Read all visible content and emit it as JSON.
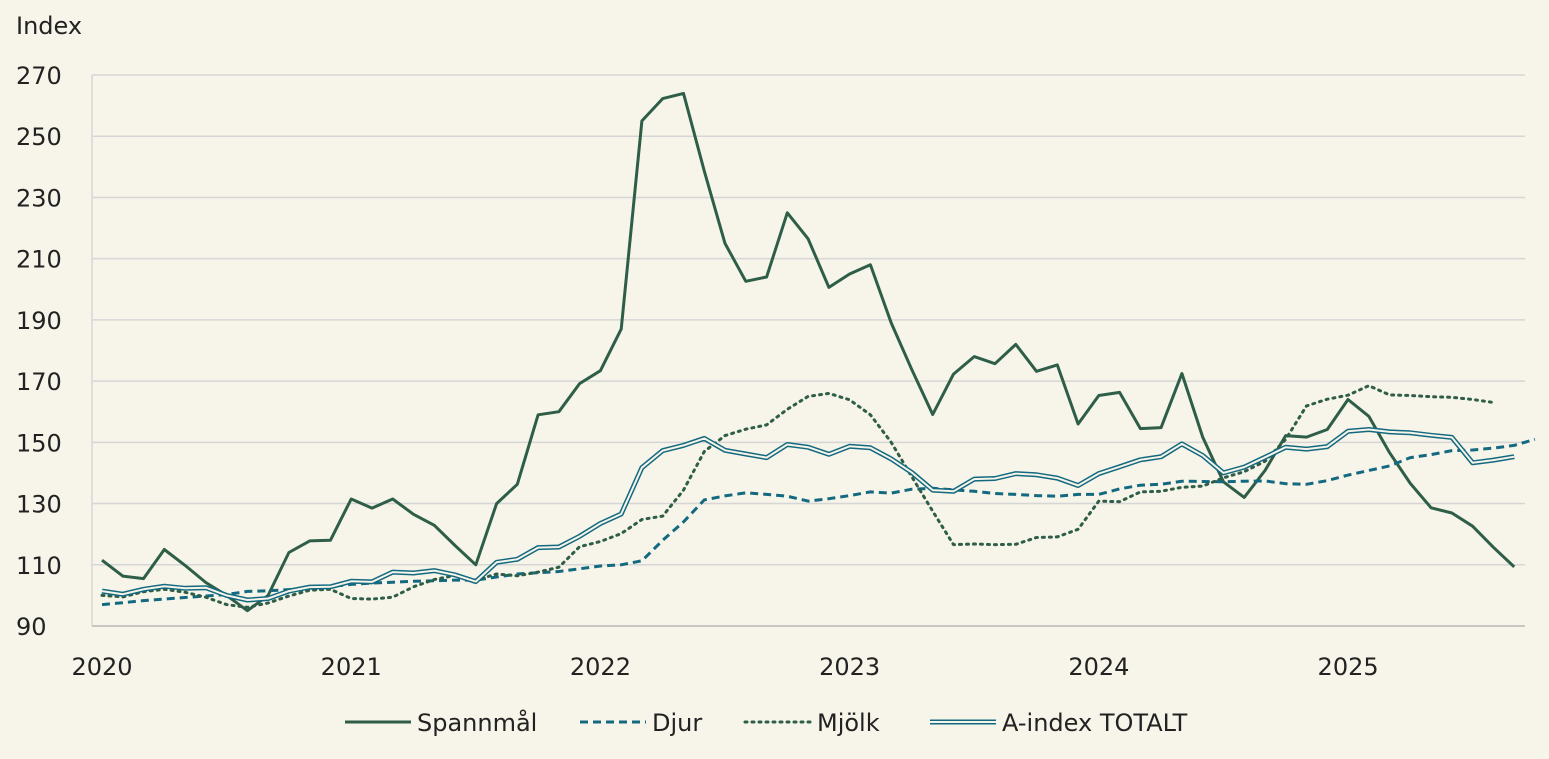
{
  "chart_data": {
    "type": "line",
    "ylabel": "Index",
    "ylim": [
      90,
      270
    ],
    "yticks": [
      90,
      110,
      130,
      150,
      170,
      190,
      210,
      230,
      250,
      270
    ],
    "xlim": [
      2020.0,
      2025.75
    ],
    "xticks": [
      {
        "value": 2020,
        "label": "2020"
      },
      {
        "value": 2021,
        "label": "2021"
      },
      {
        "value": 2022,
        "label": "2022"
      },
      {
        "value": 2023,
        "label": "2023"
      },
      {
        "value": 2024,
        "label": "2024"
      },
      {
        "value": 2025,
        "label": "2025"
      }
    ],
    "grid": "horizontal",
    "legend_position": "bottom",
    "series": [
      {
        "name": "Spannmål",
        "style": "solid",
        "color": "#2e5e48",
        "start": 2020.0,
        "step": 0.08333,
        "values": [
          111.5,
          106.3,
          105.5,
          115.0,
          109.8,
          104.2,
          100.0,
          95.0,
          100.0,
          114.0,
          117.8,
          118.0,
          131.5,
          128.5,
          131.5,
          126.5,
          122.9,
          116.3,
          110.0,
          130.0,
          136.3,
          159.0,
          160.0,
          169.2,
          173.4,
          187.0,
          255.0,
          262.3,
          264.0,
          238.6,
          215.0,
          202.6,
          204.0,
          225.0,
          216.5,
          200.6,
          205.0,
          208.0,
          189.0,
          173.7,
          159.1,
          172.3,
          178.0,
          175.7,
          182.0,
          173.2,
          175.3,
          156.0,
          165.3,
          166.3,
          154.5,
          154.8,
          172.5,
          151.7,
          137.1,
          132.0,
          140.8,
          152.2,
          151.7,
          154.2,
          164.0,
          158.5,
          146.6,
          136.6,
          128.6,
          126.9,
          122.6,
          115.7,
          109.3
        ]
      },
      {
        "name": "Djur",
        "style": "dashed",
        "color": "#136a80",
        "start": 2020.0,
        "step": 0.08333,
        "values": [
          97.0,
          97.6,
          98.3,
          98.8,
          99.3,
          99.8,
          100.3,
          101.3,
          101.5,
          101.9,
          102.3,
          102.9,
          103.6,
          104.0,
          104.3,
          104.6,
          104.8,
          105.0,
          105.0,
          106.0,
          107.0,
          107.4,
          107.8,
          108.7,
          109.6,
          110.0,
          111.3,
          118.0,
          124.0,
          131.2,
          132.5,
          133.5,
          133.0,
          132.4,
          130.8,
          131.6,
          132.6,
          133.8,
          133.4,
          134.7,
          135.0,
          134.5,
          134.0,
          133.3,
          133.0,
          132.6,
          132.4,
          133.0,
          133.0,
          134.8,
          136.0,
          136.3,
          137.3,
          137.2,
          137.1,
          137.3,
          137.4,
          136.5,
          136.3,
          137.5,
          139.3,
          140.8,
          142.3,
          145.0,
          146.0,
          147.3,
          147.5,
          148.1,
          149.0,
          151.0
        ]
      },
      {
        "name": "Mjölk",
        "style": "dotted",
        "color": "#2e5e48",
        "start": 2020.0,
        "step": 0.08333,
        "values": [
          100.0,
          99.5,
          101.2,
          102.0,
          101.0,
          99.4,
          97.0,
          96.1,
          97.5,
          99.8,
          101.7,
          102.0,
          99.0,
          98.8,
          99.4,
          102.8,
          105.2,
          106.5,
          105.0,
          107.0,
          106.4,
          107.6,
          109.2,
          115.9,
          117.6,
          120.2,
          124.8,
          125.9,
          134.4,
          147.0,
          152.2,
          154.3,
          155.7,
          160.8,
          165.0,
          166.0,
          163.9,
          159.0,
          150.0,
          138.7,
          127.5,
          116.6,
          116.8,
          116.6,
          116.7,
          118.9,
          119.1,
          121.6,
          130.8,
          130.6,
          133.8,
          134.0,
          135.3,
          135.7,
          138.4,
          140.4,
          143.8,
          151.0,
          161.9,
          164.1,
          165.4,
          168.5,
          165.5,
          165.3,
          164.9,
          164.7,
          164.0,
          163.0
        ]
      },
      {
        "name": "A-index TOTALT",
        "style": "double",
        "color": "#136a80",
        "start": 2020.0,
        "step": 0.08333,
        "values": [
          101.4,
          100.4,
          102.0,
          103.0,
          102.3,
          102.5,
          100.0,
          98.5,
          99.0,
          101.4,
          102.7,
          102.8,
          104.6,
          104.4,
          107.6,
          107.3,
          108.1,
          106.7,
          104.5,
          110.8,
          111.8,
          115.6,
          115.8,
          119.3,
          123.5,
          126.6,
          141.7,
          147.3,
          149.0,
          151.3,
          147.4,
          146.2,
          145.0,
          149.3,
          148.4,
          146.1,
          148.7,
          148.2,
          144.6,
          140.1,
          134.4,
          134.0,
          138.0,
          138.2,
          139.8,
          139.4,
          138.3,
          135.9,
          139.8,
          142.0,
          144.3,
          145.3,
          149.5,
          145.7,
          140.0,
          141.9,
          145.1,
          148.4,
          147.8,
          148.6,
          153.6,
          154.2,
          153.4,
          153.1,
          152.3,
          151.6,
          143.3,
          144.2,
          145.3
        ]
      }
    ]
  }
}
